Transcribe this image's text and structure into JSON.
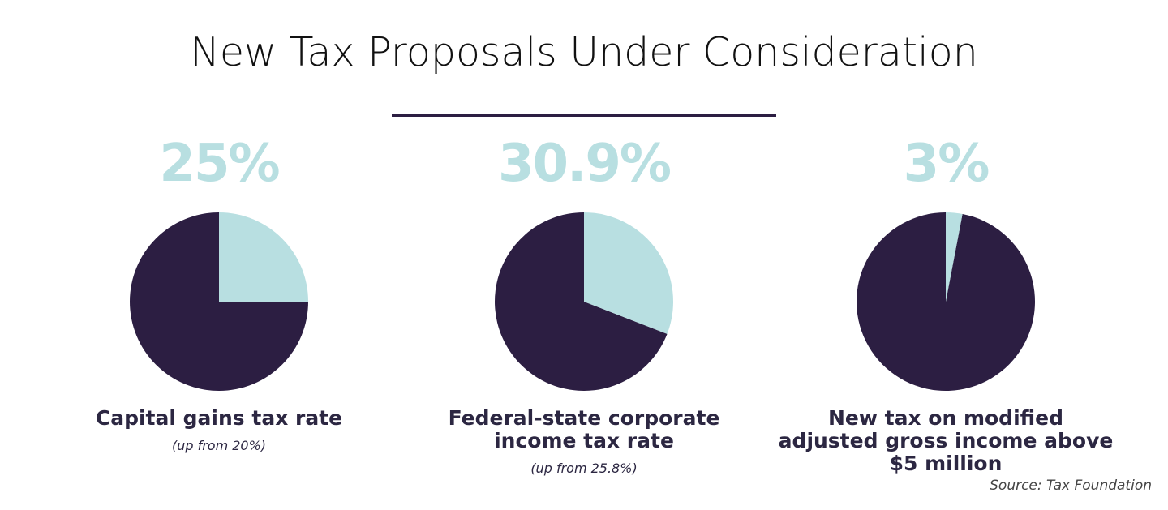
{
  "title": "New Tax Proposals Under Consideration",
  "source": "Source: Tax Foundation",
  "colors": {
    "accent": "#b8dfe1",
    "dark": "#2c1e42"
  },
  "chart_data": [
    {
      "type": "pie",
      "value_label": "25%",
      "value": 25,
      "label": "Capital gains tax rate",
      "sublabel": "(up from 20%)"
    },
    {
      "type": "pie",
      "value_label": "30.9%",
      "value": 30.9,
      "label": "Federal-state corporate income tax rate",
      "sublabel": "(up from 25.8%)"
    },
    {
      "type": "pie",
      "value_label": "3%",
      "value": 3,
      "label": "New tax on modified adjusted gross income above $5 million",
      "sublabel": ""
    }
  ]
}
